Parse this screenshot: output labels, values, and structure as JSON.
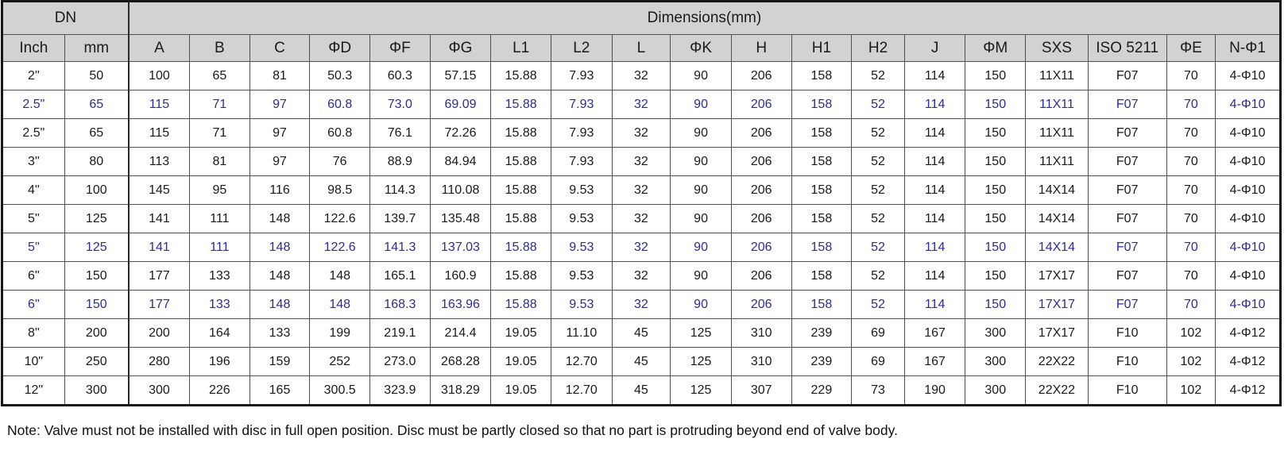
{
  "table": {
    "group_headers": [
      {
        "label": "DN",
        "colspan": 2
      },
      {
        "label": "Dimensions(mm)",
        "colspan": 19
      }
    ],
    "columns": [
      "Inch",
      "mm",
      "A",
      "B",
      "C",
      "ΦD",
      "ΦF",
      "ΦG",
      "L1",
      "L2",
      "L",
      "ΦK",
      "H",
      "H1",
      "H2",
      "J",
      "ΦM",
      "SXS",
      "ISO 5211",
      "ΦE",
      "N-Φ1"
    ],
    "rows": [
      {
        "highlight": false,
        "cells": [
          "2\"",
          "50",
          "100",
          "65",
          "81",
          "50.3",
          "60.3",
          "57.15",
          "15.88",
          "7.93",
          "32",
          "90",
          "206",
          "158",
          "52",
          "114",
          "150",
          "11X11",
          "F07",
          "70",
          "4-Φ10"
        ]
      },
      {
        "highlight": true,
        "cells": [
          "2.5\"",
          "65",
          "115",
          "71",
          "97",
          "60.8",
          "73.0",
          "69.09",
          "15.88",
          "7.93",
          "32",
          "90",
          "206",
          "158",
          "52",
          "114",
          "150",
          "11X11",
          "F07",
          "70",
          "4-Φ10"
        ]
      },
      {
        "highlight": false,
        "cells": [
          "2.5\"",
          "65",
          "115",
          "71",
          "97",
          "60.8",
          "76.1",
          "72.26",
          "15.88",
          "7.93",
          "32",
          "90",
          "206",
          "158",
          "52",
          "114",
          "150",
          "11X11",
          "F07",
          "70",
          "4-Φ10"
        ]
      },
      {
        "highlight": false,
        "cells": [
          "3\"",
          "80",
          "113",
          "81",
          "97",
          "76",
          "88.9",
          "84.94",
          "15.88",
          "7.93",
          "32",
          "90",
          "206",
          "158",
          "52",
          "114",
          "150",
          "11X11",
          "F07",
          "70",
          "4-Φ10"
        ]
      },
      {
        "highlight": false,
        "cells": [
          "4\"",
          "100",
          "145",
          "95",
          "116",
          "98.5",
          "114.3",
          "110.08",
          "15.88",
          "9.53",
          "32",
          "90",
          "206",
          "158",
          "52",
          "114",
          "150",
          "14X14",
          "F07",
          "70",
          "4-Φ10"
        ]
      },
      {
        "highlight": false,
        "cells": [
          "5\"",
          "125",
          "141",
          "111",
          "148",
          "122.6",
          "139.7",
          "135.48",
          "15.88",
          "9.53",
          "32",
          "90",
          "206",
          "158",
          "52",
          "114",
          "150",
          "14X14",
          "F07",
          "70",
          "4-Φ10"
        ]
      },
      {
        "highlight": true,
        "cells": [
          "5\"",
          "125",
          "141",
          "111",
          "148",
          "122.6",
          "141.3",
          "137.03",
          "15.88",
          "9.53",
          "32",
          "90",
          "206",
          "158",
          "52",
          "114",
          "150",
          "14X14",
          "F07",
          "70",
          "4-Φ10"
        ]
      },
      {
        "highlight": false,
        "cells": [
          "6\"",
          "150",
          "177",
          "133",
          "148",
          "148",
          "165.1",
          "160.9",
          "15.88",
          "9.53",
          "32",
          "90",
          "206",
          "158",
          "52",
          "114",
          "150",
          "17X17",
          "F07",
          "70",
          "4-Φ10"
        ]
      },
      {
        "highlight": true,
        "cells": [
          "6\"",
          "150",
          "177",
          "133",
          "148",
          "148",
          "168.3",
          "163.96",
          "15.88",
          "9.53",
          "32",
          "90",
          "206",
          "158",
          "52",
          "114",
          "150",
          "17X17",
          "F07",
          "70",
          "4-Φ10"
        ]
      },
      {
        "highlight": false,
        "cells": [
          "8\"",
          "200",
          "200",
          "164",
          "133",
          "199",
          "219.1",
          "214.4",
          "19.05",
          "11.10",
          "45",
          "125",
          "310",
          "239",
          "69",
          "167",
          "300",
          "17X17",
          "F10",
          "102",
          "4-Φ12"
        ]
      },
      {
        "highlight": false,
        "cells": [
          "10\"",
          "250",
          "280",
          "196",
          "159",
          "252",
          "273.0",
          "268.28",
          "19.05",
          "12.70",
          "45",
          "125",
          "310",
          "239",
          "69",
          "167",
          "300",
          "22X22",
          "F10",
          "102",
          "4-Φ12"
        ]
      },
      {
        "highlight": false,
        "cells": [
          "12\"",
          "300",
          "300",
          "226",
          "165",
          "300.5",
          "323.9",
          "318.29",
          "19.05",
          "12.70",
          "45",
          "125",
          "307",
          "229",
          "73",
          "190",
          "300",
          "22X22",
          "F10",
          "102",
          "4-Φ12"
        ]
      }
    ]
  },
  "note": "Note: Valve must not be installed with disc in full open position. Disc must be partly closed so that no part is protruding beyond end of valve body.",
  "colors": {
    "header_bg": "#d2d2d2",
    "highlight_text": "#2b2b9b",
    "text": "#1a1a1a",
    "grid_line": "#4f4f4f",
    "frame": "#161616"
  }
}
